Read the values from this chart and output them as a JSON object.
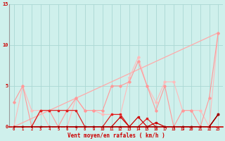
{
  "x": [
    0,
    1,
    2,
    3,
    4,
    5,
    6,
    7,
    8,
    9,
    10,
    11,
    12,
    13,
    14,
    15,
    16,
    17,
    18,
    19,
    20,
    21,
    22,
    23
  ],
  "line_diag": [
    0,
    0.5,
    1,
    1.5,
    2,
    2.5,
    3,
    3.5,
    4,
    4.5,
    5,
    5.5,
    6,
    6.5,
    7,
    7.5,
    8,
    8.5,
    9,
    9.5,
    10,
    10.5,
    11,
    11.5
  ],
  "line_pink": [
    3,
    5,
    0,
    2,
    2,
    0,
    2,
    3.5,
    2,
    2,
    2,
    5,
    5,
    5.5,
    8,
    5,
    2,
    5,
    0,
    2,
    2,
    0,
    3.5,
    11.5
  ],
  "line_lpink": [
    0,
    5,
    2,
    2,
    0,
    0,
    0,
    3.5,
    2,
    2,
    1.5,
    1.5,
    1.5,
    6,
    8.5,
    5,
    3,
    5.5,
    5.5,
    2,
    2,
    2,
    0,
    11.5
  ],
  "line_red1": [
    0,
    0,
    0,
    2,
    2,
    2,
    2,
    2,
    0,
    0,
    0,
    1.5,
    1.5,
    0,
    0,
    1,
    0,
    0,
    0,
    0,
    0,
    0,
    0,
    1.5
  ],
  "line_red2": [
    0,
    0,
    0,
    0,
    0,
    0,
    0,
    0,
    0,
    0,
    0,
    0,
    1.2,
    0,
    1.2,
    0,
    0.5,
    0,
    0,
    0,
    0,
    0,
    0,
    1.5
  ],
  "line_red3": [
    0,
    0,
    0,
    0,
    0,
    0,
    0,
    0,
    0,
    0,
    0,
    0,
    0,
    0,
    0,
    0,
    0,
    0,
    0,
    0,
    0,
    0,
    0,
    1.5
  ],
  "ylim": [
    0,
    15
  ],
  "xlim_min": -0.5,
  "xlim_max": 23.5,
  "xlabel": "Vent moyen/en rafales ( km/h )",
  "bg_color": "#cff0ec",
  "grid_color": "#aad8d4",
  "diag_color": "#ffaaaa",
  "pink_color": "#ff9999",
  "lpink_color": "#ffbbbb",
  "red1_color": "#dd2222",
  "red2_color": "#cc0000",
  "red3_color": "#990000",
  "tick_color": "#cc0000",
  "label_color": "#cc0000",
  "spine_color": "#999999"
}
